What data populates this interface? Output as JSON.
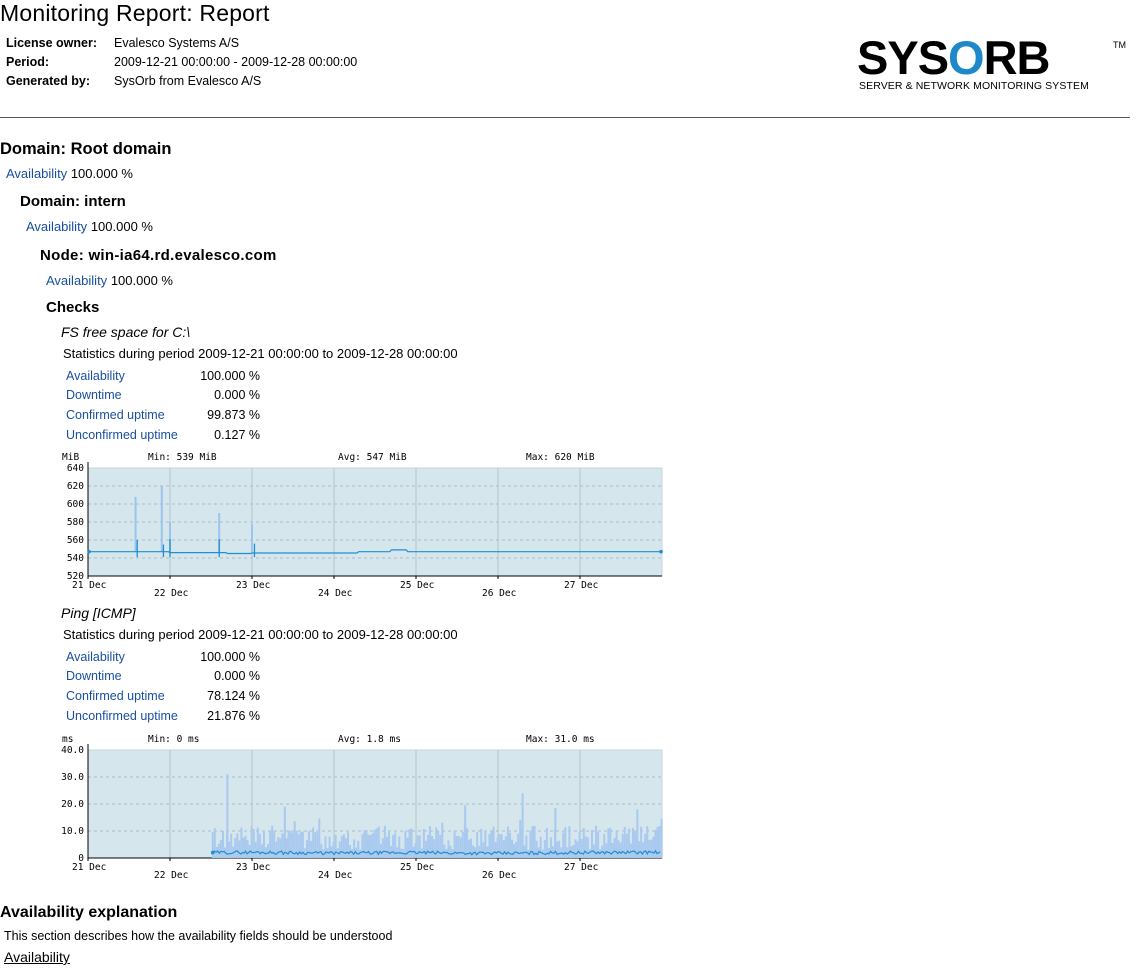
{
  "report": {
    "title": "Monitoring Report: Report",
    "meta": [
      {
        "key": "License owner:",
        "value": "Evalesco Systems A/S"
      },
      {
        "key": "Period:",
        "value": "2009-12-21 00:00:00 - 2009-12-28 00:00:00"
      },
      {
        "key": "Generated by:",
        "value": "SysOrb from Evalesco A/S"
      }
    ]
  },
  "logo": {
    "word_pre": "SYS",
    "word_o": "O",
    "word_post": "RB",
    "tm": "TM",
    "tagline": "SERVER & NETWORK MONITORING SYSTEM"
  },
  "root_domain": {
    "title": "Domain: Root domain",
    "avail_label": "Availability",
    "avail_value": "100.000 %"
  },
  "intern_domain": {
    "title": "Domain: intern",
    "avail_label": "Availability",
    "avail_value": "100.000 %"
  },
  "node": {
    "title": "Node: win-ia64.rd.evalesco.com",
    "avail_label": "Availability",
    "avail_value": "100.000 %"
  },
  "checks_title": "Checks",
  "checks": [
    {
      "title": "FS free space for C:\\",
      "period_text": "Statistics during period 2009-12-21 00:00:00 to 2009-12-28 00:00:00",
      "stats": [
        {
          "label": "Availability",
          "value": "100.000 %"
        },
        {
          "label": "Downtime",
          "value": "0.000 %"
        },
        {
          "label": "Confirmed uptime",
          "value": "99.873 %"
        },
        {
          "label": "Unconfirmed uptime",
          "value": "0.127 %"
        }
      ]
    },
    {
      "title": "Ping [ICMP]",
      "period_text": "Statistics during period 2009-12-21 00:00:00 to 2009-12-28 00:00:00",
      "stats": [
        {
          "label": "Availability",
          "value": "100.000 %"
        },
        {
          "label": "Downtime",
          "value": "0.000 %"
        },
        {
          "label": "Confirmed uptime",
          "value": "78.124 %"
        },
        {
          "label": "Unconfirmed uptime",
          "value": "21.876 %"
        }
      ]
    }
  ],
  "charts": [
    {
      "unit": "MiB",
      "min_label": "Min: 539 MiB",
      "avg_label": "Avg: 547 MiB",
      "max_label": "Max: 620 MiB",
      "y_ticks": [
        "640",
        "620",
        "600",
        "580",
        "560",
        "540",
        "520"
      ],
      "x_ticks_upper": [
        "21 Dec",
        "23 Dec",
        "25 Dec",
        "27 Dec"
      ],
      "x_ticks_lower": [
        "22 Dec",
        "24 Dec",
        "26 Dec"
      ]
    },
    {
      "unit": "ms",
      "min_label": "Min: 0 ms",
      "avg_label": "Avg: 1.8 ms",
      "max_label": "Max: 31.0 ms",
      "y_ticks": [
        "40.0",
        "30.0",
        "20.0",
        "10.0",
        "0"
      ],
      "x_ticks_upper": [
        "21 Dec",
        "23 Dec",
        "25 Dec",
        "27 Dec"
      ],
      "x_ticks_lower": [
        "22 Dec",
        "24 Dec",
        "26 Dec"
      ]
    }
  ],
  "chart_data": [
    {
      "type": "area",
      "ylabel": "MiB",
      "ylim": [
        520,
        640
      ],
      "xlim": [
        "2009-12-21",
        "2009-12-28"
      ],
      "grid": true,
      "series": [
        {
          "x": [
            "2009-12-21",
            "2009-12-21 22:00",
            "2009-12-22 00:00",
            "2009-12-22 02:00",
            "2009-12-23 00:00",
            "2009-12-24 00:00",
            "2009-12-25 00:00",
            "2009-12-26 00:00",
            "2009-12-27 00:00",
            "2009-12-28 00:00"
          ],
          "y": [
            547,
            560,
            545,
            548,
            546,
            545,
            548,
            547,
            547,
            547
          ]
        }
      ],
      "spikes": [
        [
          0.58,
          608
        ],
        [
          0.9,
          620
        ],
        [
          1.0,
          580
        ],
        [
          1.6,
          590
        ],
        [
          2.0,
          578
        ]
      ]
    },
    {
      "type": "area",
      "ylabel": "ms",
      "ylim": [
        0,
        40
      ],
      "xlim": [
        "2009-12-21",
        "2009-12-28"
      ],
      "data_start": "2009-12-22 12:30",
      "grid": true,
      "series": [
        {
          "x": [
            "2009-12-22 12:30",
            "2009-12-23 00:00",
            "2009-12-24 00:00",
            "2009-12-25 00:00",
            "2009-12-26 00:00",
            "2009-12-27 00:00",
            "2009-12-28 00:00"
          ],
          "y": [
            2.0,
            2.1,
            1.8,
            2.0,
            1.7,
            2.0,
            2.1
          ]
        }
      ],
      "spikes": [
        [
          1.7,
          31.0
        ],
        [
          2.4,
          19.0
        ],
        [
          4.6,
          19.5
        ],
        [
          5.3,
          24.0
        ],
        [
          5.7,
          18.5
        ],
        [
          6.7,
          18.0
        ]
      ]
    }
  ],
  "explanation": {
    "title": "Availability explanation",
    "text": "This section describes how the availability fields should be understood",
    "link": "Availability"
  }
}
